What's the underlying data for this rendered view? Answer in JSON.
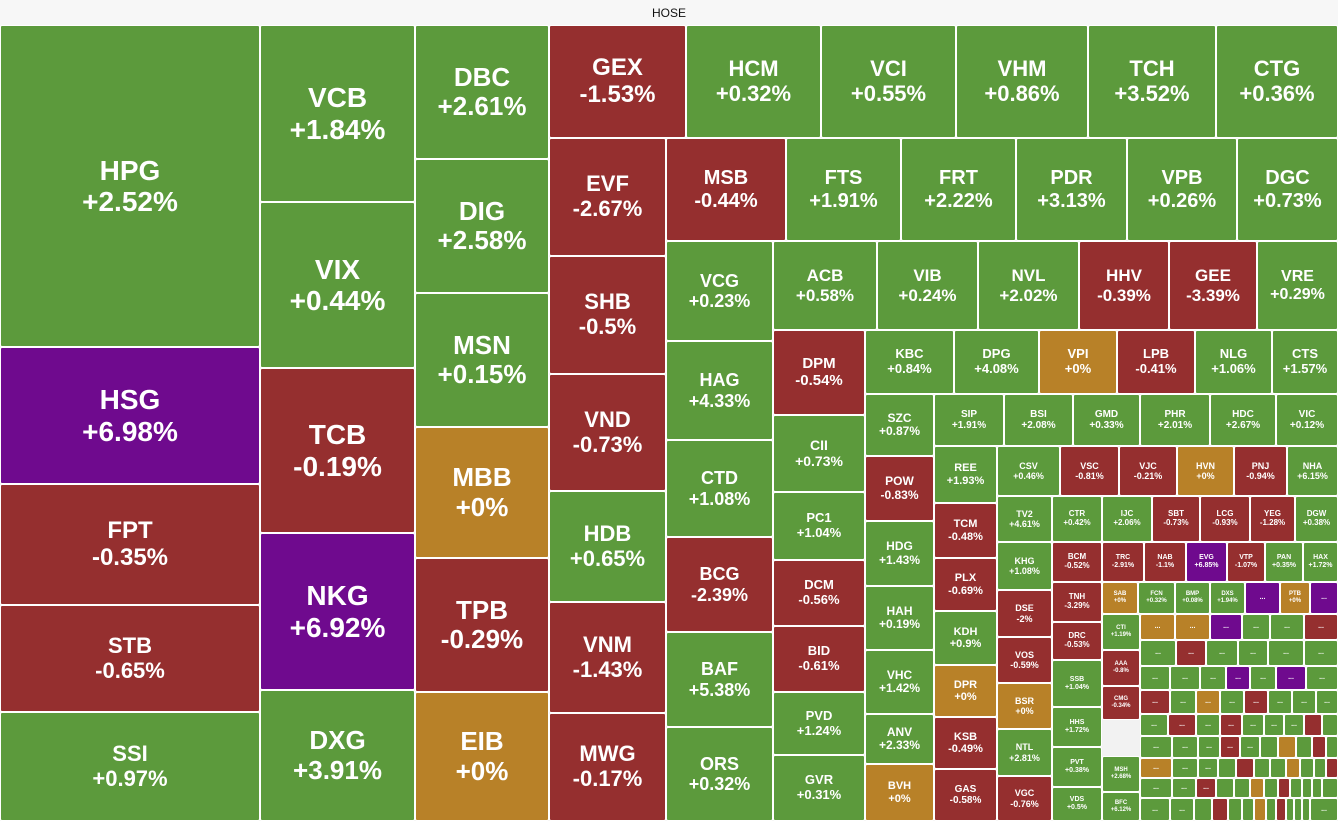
{
  "header": {
    "title": "HOSE"
  },
  "colors": {
    "up": "#5c9a3c",
    "down": "#952f2f",
    "flat": "#b88128",
    "ceiling": "#6f0a8e",
    "border": "#ffffff"
  },
  "chart_data": {
    "type": "treemap",
    "title": "HOSE",
    "tiles": [
      {
        "symbol": "HPG",
        "change": "+2.52%"
      },
      {
        "symbol": "HSG",
        "change": "+6.98%"
      },
      {
        "symbol": "FPT",
        "change": "-0.35%"
      },
      {
        "symbol": "STB",
        "change": "-0.65%"
      },
      {
        "symbol": "SSI",
        "change": "+0.97%"
      },
      {
        "symbol": "VCB",
        "change": "+1.84%"
      },
      {
        "symbol": "VIX",
        "change": "+0.44%"
      },
      {
        "symbol": "TCB",
        "change": "-0.19%"
      },
      {
        "symbol": "NKG",
        "change": "+6.92%"
      },
      {
        "symbol": "DXG",
        "change": "+3.91%"
      },
      {
        "symbol": "DBC",
        "change": "+2.61%"
      },
      {
        "symbol": "DIG",
        "change": "+2.58%"
      },
      {
        "symbol": "MSN",
        "change": "+0.15%"
      },
      {
        "symbol": "MBB",
        "change": "+0%"
      },
      {
        "symbol": "TPB",
        "change": "-0.29%"
      },
      {
        "symbol": "EIB",
        "change": "+0%"
      },
      {
        "symbol": "GEX",
        "change": "-1.53%"
      },
      {
        "symbol": "EVF",
        "change": "-2.67%"
      },
      {
        "symbol": "SHB",
        "change": "-0.5%"
      },
      {
        "symbol": "VND",
        "change": "-0.73%"
      },
      {
        "symbol": "HDB",
        "change": "+0.65%"
      },
      {
        "symbol": "VNM",
        "change": "-1.43%"
      },
      {
        "symbol": "MWG",
        "change": "-0.17%"
      },
      {
        "symbol": "HCM",
        "change": "+0.32%"
      },
      {
        "symbol": "VCI",
        "change": "+0.55%"
      },
      {
        "symbol": "VHM",
        "change": "+0.86%"
      },
      {
        "symbol": "TCH",
        "change": "+3.52%"
      },
      {
        "symbol": "CTG",
        "change": "+0.36%"
      },
      {
        "symbol": "MSB",
        "change": "-0.44%"
      },
      {
        "symbol": "FTS",
        "change": "+1.91%"
      },
      {
        "symbol": "FRT",
        "change": "+2.22%"
      },
      {
        "symbol": "PDR",
        "change": "+3.13%"
      },
      {
        "symbol": "VPB",
        "change": "+0.26%"
      },
      {
        "symbol": "DGC",
        "change": "+0.73%"
      },
      {
        "symbol": "VCG",
        "change": "+0.23%"
      },
      {
        "symbol": "ACB",
        "change": "+0.58%"
      },
      {
        "symbol": "VIB",
        "change": "+0.24%"
      },
      {
        "symbol": "NVL",
        "change": "+2.02%"
      },
      {
        "symbol": "HHV",
        "change": "-0.39%"
      },
      {
        "symbol": "GEE",
        "change": "-3.39%"
      },
      {
        "symbol": "VRE",
        "change": "+0.29%"
      },
      {
        "symbol": "HAG",
        "change": "+4.33%"
      },
      {
        "symbol": "CTD",
        "change": "+1.08%"
      },
      {
        "symbol": "BCG",
        "change": "-2.39%"
      },
      {
        "symbol": "BAF",
        "change": "+5.38%"
      },
      {
        "symbol": "ORS",
        "change": "+0.32%"
      },
      {
        "symbol": "DPM",
        "change": "-0.54%"
      },
      {
        "symbol": "CII",
        "change": "+0.73%"
      },
      {
        "symbol": "PC1",
        "change": "+1.04%"
      },
      {
        "symbol": "DCM",
        "change": "-0.56%"
      },
      {
        "symbol": "BID",
        "change": "-0.61%"
      },
      {
        "symbol": "PVD",
        "change": "+1.24%"
      },
      {
        "symbol": "GVR",
        "change": "+0.31%"
      },
      {
        "symbol": "KBC",
        "change": "+0.84%"
      },
      {
        "symbol": "DPG",
        "change": "+4.08%"
      },
      {
        "symbol": "VPI",
        "change": "+0%"
      },
      {
        "symbol": "LPB",
        "change": "-0.41%"
      },
      {
        "symbol": "NLG",
        "change": "+1.06%"
      },
      {
        "symbol": "CTS",
        "change": "+1.57%"
      },
      {
        "symbol": "SZC",
        "change": "+0.87%"
      },
      {
        "symbol": "POW",
        "change": "-0.83%"
      },
      {
        "symbol": "HDG",
        "change": "+1.43%"
      },
      {
        "symbol": "HAH",
        "change": "+0.19%"
      },
      {
        "symbol": "VHC",
        "change": "+1.42%"
      },
      {
        "symbol": "ANV",
        "change": "+2.33%"
      },
      {
        "symbol": "BVH",
        "change": "+0%"
      },
      {
        "symbol": "SIP",
        "change": "+1.91%"
      },
      {
        "symbol": "BSI",
        "change": "+2.08%"
      },
      {
        "symbol": "GMD",
        "change": "+0.33%"
      },
      {
        "symbol": "PHR",
        "change": "+2.01%"
      },
      {
        "symbol": "HDC",
        "change": "+2.67%"
      },
      {
        "symbol": "VIC",
        "change": "+0.12%"
      },
      {
        "symbol": "REE",
        "change": "+1.93%"
      },
      {
        "symbol": "CSV",
        "change": "+0.46%"
      },
      {
        "symbol": "VSC",
        "change": "-0.81%"
      },
      {
        "symbol": "VJC",
        "change": "-0.21%"
      },
      {
        "symbol": "HVN",
        "change": "+0%"
      },
      {
        "symbol": "PNJ",
        "change": "-0.94%"
      },
      {
        "symbol": "NHA",
        "change": "+6.15%"
      },
      {
        "symbol": "TCM",
        "change": "-0.48%"
      },
      {
        "symbol": "PLX",
        "change": "-0.69%"
      },
      {
        "symbol": "KDH",
        "change": "+0.9%"
      },
      {
        "symbol": "DPR",
        "change": "+0%"
      },
      {
        "symbol": "KSB",
        "change": "-0.49%"
      },
      {
        "symbol": "GAS",
        "change": "-0.58%"
      },
      {
        "symbol": "TV2",
        "change": "+4.61%"
      },
      {
        "symbol": "CTR",
        "change": "+0.42%"
      },
      {
        "symbol": "IJC",
        "change": "+2.06%"
      },
      {
        "symbol": "SBT",
        "change": "-0.73%"
      },
      {
        "symbol": "LCG",
        "change": "-0.93%"
      },
      {
        "symbol": "YEG",
        "change": "-1.28%"
      },
      {
        "symbol": "DGW",
        "change": "+0.38%"
      },
      {
        "symbol": "KHG",
        "change": "+1.08%"
      },
      {
        "symbol": "BCM",
        "change": "-0.52%"
      },
      {
        "symbol": "TRC",
        "change": "-2.91%"
      },
      {
        "symbol": "NAB",
        "change": "-1.1%"
      },
      {
        "symbol": "EVG",
        "change": "+6.85%"
      },
      {
        "symbol": "VTP",
        "change": "-1.07%"
      },
      {
        "symbol": "PAN",
        "change": "+0.35%"
      },
      {
        "symbol": "HAX",
        "change": "+1.72%"
      },
      {
        "symbol": "DSE",
        "change": "-2%"
      },
      {
        "symbol": "TNH",
        "change": "-3.29%"
      },
      {
        "symbol": "SAB",
        "change": "+0%"
      },
      {
        "symbol": "FCN",
        "change": "+0.32%"
      },
      {
        "symbol": "BMP",
        "change": "+0.08%"
      },
      {
        "symbol": "DXS",
        "change": "+1.94%"
      },
      {
        "symbol": "PTB",
        "change": "+0%"
      },
      {
        "symbol": "VOS",
        "change": "-0.59%"
      },
      {
        "symbol": "DRC",
        "change": "-0.53%"
      },
      {
        "symbol": "CTI",
        "change": "+1.19%"
      },
      {
        "symbol": "AAA",
        "change": "-0.8%"
      },
      {
        "symbol": "BSR",
        "change": "+0%"
      },
      {
        "symbol": "SSB",
        "change": "+1.04%"
      },
      {
        "symbol": "CMG",
        "change": "-0.34%"
      },
      {
        "symbol": "NTL",
        "change": "+2.81%"
      },
      {
        "symbol": "HHS",
        "change": "+1.72%"
      },
      {
        "symbol": "PVT",
        "change": "+0.38%"
      },
      {
        "symbol": "MSH",
        "change": "+2.68%"
      },
      {
        "symbol": "VGC",
        "change": "-0.76%"
      },
      {
        "symbol": "VDS",
        "change": "+0.5%"
      },
      {
        "symbol": "BFC",
        "change": "+6.12%"
      }
    ],
    "ellipsis": "..."
  }
}
